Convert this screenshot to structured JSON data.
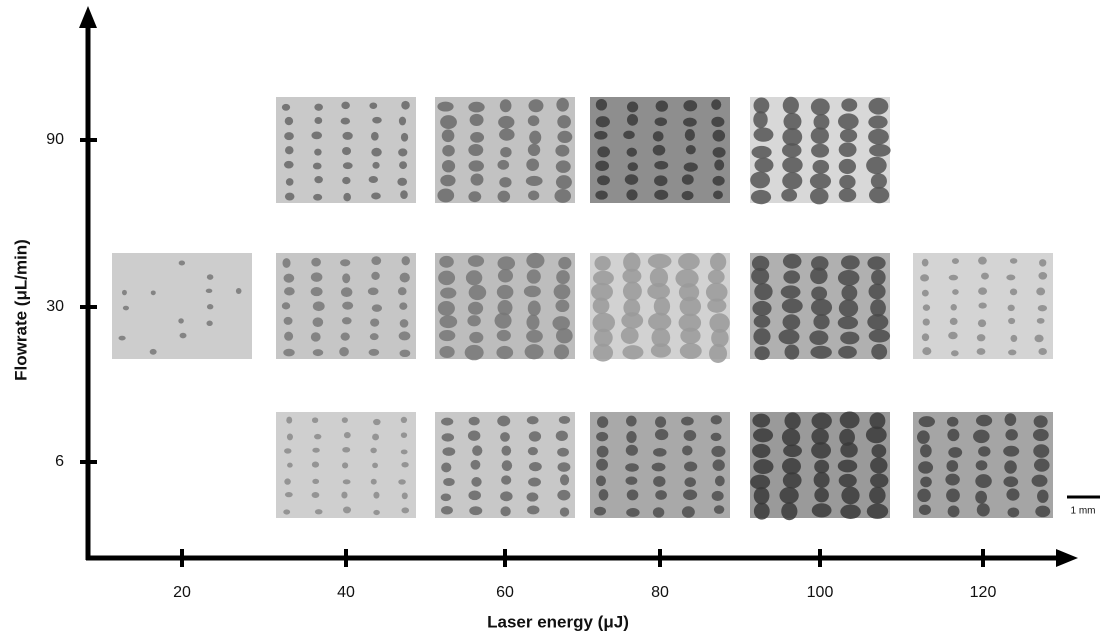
{
  "x_axis": {
    "label": "Laser energy (μJ)",
    "ticks": [
      20,
      40,
      60,
      80,
      100,
      120
    ]
  },
  "y_axis": {
    "label": "Flowrate (μL/min)",
    "ticks": [
      90,
      30,
      6
    ]
  },
  "scale_bar": "1 mm"
}
